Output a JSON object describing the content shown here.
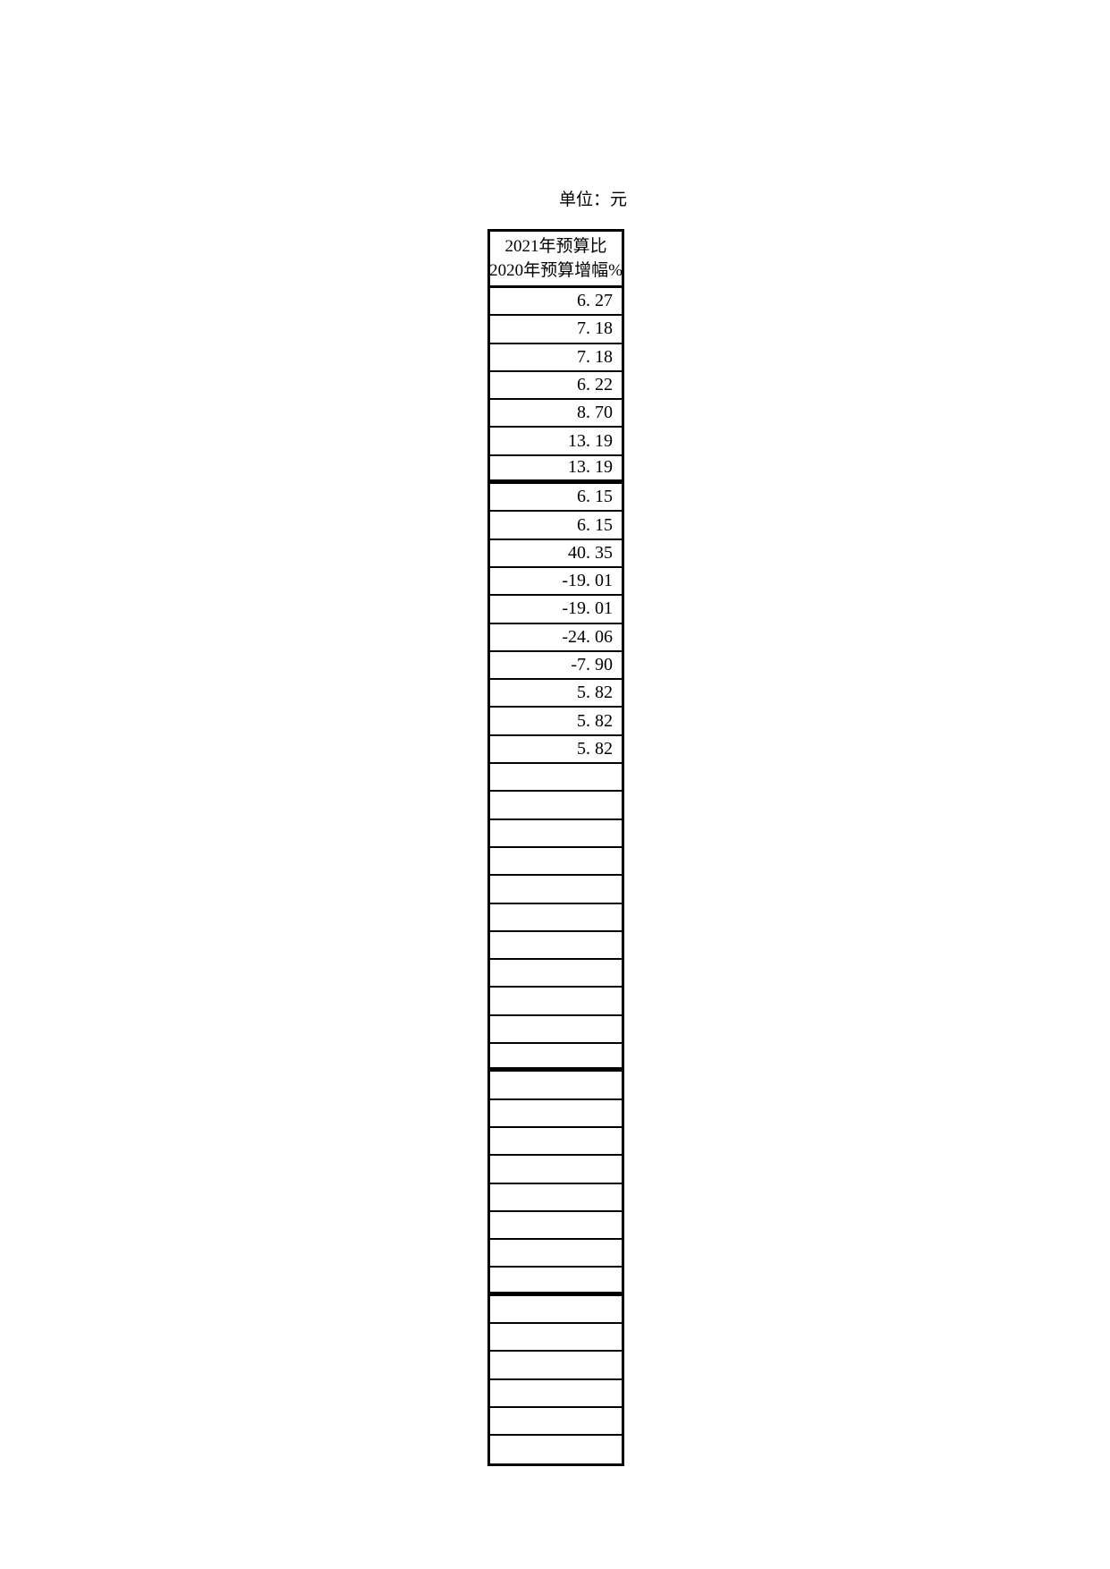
{
  "page": {
    "unit_label": "单位：元"
  },
  "table": {
    "header_line1": "2021年预算比",
    "header_line2": "2020年预算增幅%",
    "rows": [
      {
        "value": "6. 27"
      },
      {
        "value": "7. 18"
      },
      {
        "value": "7. 18"
      },
      {
        "value": "6. 22"
      },
      {
        "value": "8. 70"
      },
      {
        "value": "13. 19"
      },
      {
        "value": "13. 19",
        "thick": true
      },
      {
        "value": "6. 15"
      },
      {
        "value": "6. 15"
      },
      {
        "value": "40. 35"
      },
      {
        "value": "-19. 01"
      },
      {
        "value": "-19. 01"
      },
      {
        "value": "-24. 06"
      },
      {
        "value": "-7. 90"
      },
      {
        "value": "5. 82"
      },
      {
        "value": "5. 82"
      },
      {
        "value": "5. 82"
      },
      {
        "value": ""
      },
      {
        "value": ""
      },
      {
        "value": ""
      },
      {
        "value": ""
      },
      {
        "value": ""
      },
      {
        "value": ""
      },
      {
        "value": ""
      },
      {
        "value": ""
      },
      {
        "value": ""
      },
      {
        "value": ""
      },
      {
        "value": "",
        "thick": true
      },
      {
        "value": ""
      },
      {
        "value": ""
      },
      {
        "value": ""
      },
      {
        "value": ""
      },
      {
        "value": ""
      },
      {
        "value": ""
      },
      {
        "value": ""
      },
      {
        "value": "",
        "thick": true
      },
      {
        "value": ""
      },
      {
        "value": ""
      },
      {
        "value": ""
      },
      {
        "value": ""
      },
      {
        "value": ""
      },
      {
        "value": ""
      }
    ]
  }
}
